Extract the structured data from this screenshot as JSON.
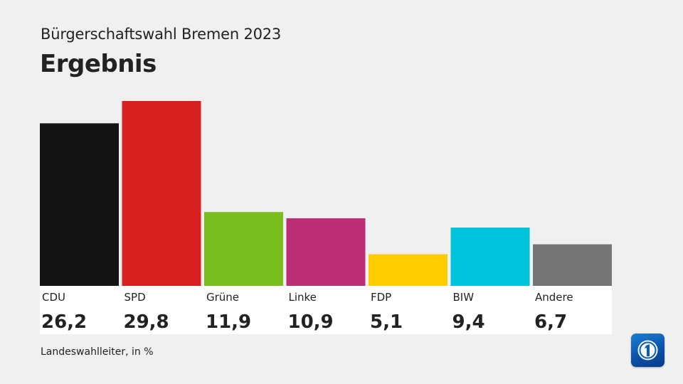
{
  "header": {
    "subtitle": "Bürgerschaftswahl Bremen 2023",
    "title": "Ergebnis"
  },
  "footer": {
    "source": "Landeswahlleiter, in %"
  },
  "logo": {
    "icon": "ard-tagesschau-logo-icon"
  },
  "chart_data": {
    "type": "bar",
    "title": "Ergebnis",
    "subtitle": "Bürgerschaftswahl Bremen 2023",
    "categories": [
      "CDU",
      "SPD",
      "Grüne",
      "Linke",
      "FDP",
      "BIW",
      "Andere"
    ],
    "values": [
      26.2,
      29.8,
      11.9,
      10.9,
      5.1,
      9.4,
      6.7
    ],
    "value_labels": [
      "26,2",
      "29,8",
      "11,9",
      "10,9",
      "5,1",
      "9,4",
      "6,7"
    ],
    "colors": [
      "#141414",
      "#d7201f",
      "#79bd1f",
      "#bc2f74",
      "#ffcc00",
      "#00c3dc",
      "#757575"
    ],
    "unit": "%",
    "grid": false,
    "legend": "none"
  }
}
